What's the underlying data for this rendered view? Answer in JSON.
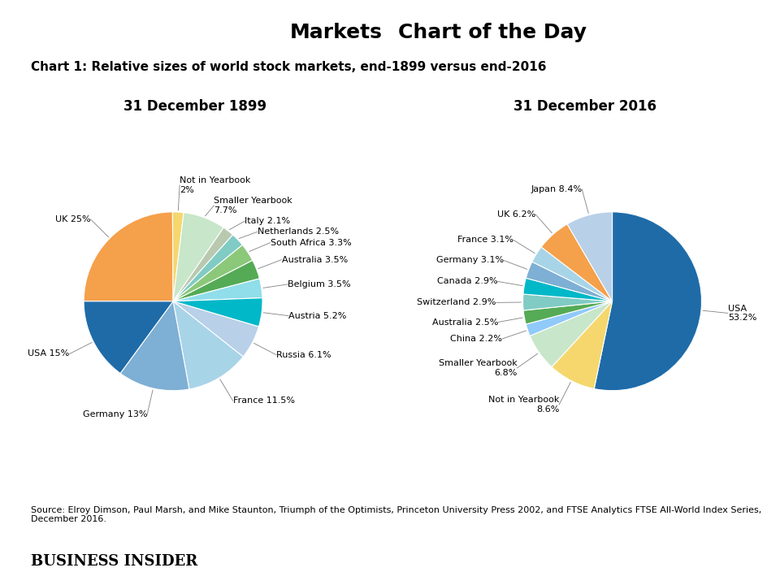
{
  "title": "Chart 1: Relative sizes of world stock markets, end-1899 versus end-2016",
  "annotations": [
    "Markets",
    "Chart of the Day",
    "Source: Elroy Dimson, Paul Marsh, and Mike Staunton, Triumph of the Optimists, Princeton University Press 2002, and FTSE Analytics FTSE All-World Index Series, December 2016.",
    "BUSINESS INSIDER"
  ],
  "chart_data": [
    {
      "type": "pie",
      "title": "31 December 1899",
      "categories": [
        "UK 25%",
        "Not in Yearbook\n2%",
        "Smaller Yearbook\n7.7%",
        "Italy 2.1%",
        "Netherlands 2.5%",
        "South Africa 3.3%",
        "Australia 3.5%",
        "Belgium 3.5%",
        "Austria 5.2%",
        "Russia 6.1%",
        "France 11.5%",
        "Germany 13%",
        "USA 15%"
      ],
      "values": [
        25.0,
        2.0,
        7.7,
        2.1,
        2.5,
        3.3,
        3.5,
        3.5,
        5.2,
        6.1,
        11.5,
        13.0,
        15.0
      ],
      "colors": [
        "#F5A04A",
        "#F5D76E",
        "#C8E6C9",
        "#B8C9B0",
        "#80CBC4",
        "#8BC87A",
        "#55AA55",
        "#90DEEA",
        "#00B8C8",
        "#B8D0E8",
        "#A8D4E8",
        "#7EAFD4",
        "#1E6BA8"
      ]
    },
    {
      "type": "pie",
      "title": "31 December 2016",
      "categories": [
        "USA\n53.2%",
        "Not in Yearbook\n8.6%",
        "Smaller Yearbook\n6.8%",
        "China 2.2%",
        "Australia 2.5%",
        "Switzerland 2.9%",
        "Canada 2.9%",
        "Germany 3.1%",
        "France 3.1%",
        "UK 6.2%",
        "Japan 8.4%"
      ],
      "values": [
        53.2,
        8.6,
        6.8,
        2.2,
        2.5,
        2.9,
        2.9,
        3.1,
        3.1,
        6.2,
        8.4
      ],
      "colors": [
        "#1E6BA8",
        "#F5D76E",
        "#C8E6C9",
        "#90CAF9",
        "#55AA55",
        "#80CBC4",
        "#00B8C8",
        "#7EAFD4",
        "#A8D4E8",
        "#F5A04A",
        "#B8D0E8"
      ]
    }
  ]
}
